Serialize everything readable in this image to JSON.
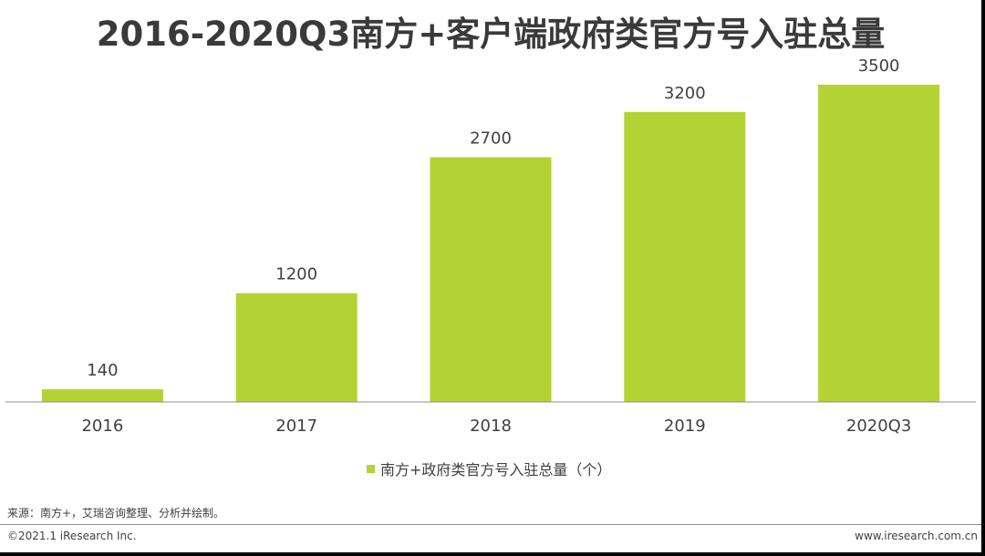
{
  "colors": {
    "bar": "#b3d335",
    "text": "#404040",
    "axis": "#8c8c8c"
  },
  "chart_data": {
    "type": "bar",
    "title": "2016-2020Q3南方+客户端政府类官方号入驻总量",
    "categories": [
      "2016",
      "2017",
      "2018",
      "2019",
      "2020Q3"
    ],
    "series": [
      {
        "name": "南方+政府类官方号入驻总量（个）",
        "values": [
          140,
          1200,
          2700,
          3200,
          3500
        ]
      }
    ],
    "data_labels": [
      "140",
      "1200",
      "2700",
      "3200",
      "3500"
    ],
    "ylim": [
      0,
      3600
    ],
    "grid": false,
    "legend_position": "bottom-center"
  },
  "footer": {
    "source": "来源：南方+，艾瑞咨询整理、分析并绘制。",
    "copyright": "©2021.1 iResearch Inc.",
    "website": "www.iresearch.com.cn"
  }
}
